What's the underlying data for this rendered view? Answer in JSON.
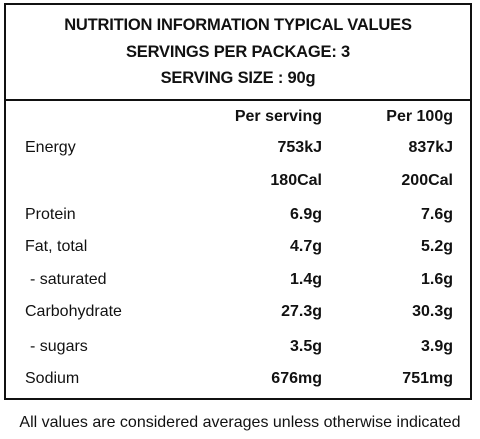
{
  "header": {
    "line1": "NUTRITION INFORMATION TYPICAL VALUES",
    "line2": "SERVINGS PER PACKAGE: 3",
    "line3": "SERVING SIZE : 90g"
  },
  "columns": {
    "per_serving": "Per serving",
    "per_100g": "Per 100g"
  },
  "rows": [
    {
      "label": "Energy",
      "per_serving": "753kJ",
      "per_100g": "837kJ"
    },
    {
      "label": "",
      "per_serving": "180Cal",
      "per_100g": "200Cal"
    },
    {
      "label": "Protein",
      "per_serving": "6.9g",
      "per_100g": "7.6g"
    },
    {
      "label": "Fat, total",
      "per_serving": "4.7g",
      "per_100g": "5.2g"
    },
    {
      "label": "- saturated",
      "per_serving": "1.4g",
      "per_100g": "1.6g"
    },
    {
      "label": "Carbohydrate",
      "per_serving": "27.3g",
      "per_100g": "30.3g"
    },
    {
      "label": "- sugars",
      "per_serving": "3.5g",
      "per_100g": "3.9g"
    },
    {
      "label": "Sodium",
      "per_serving": "676mg",
      "per_100g": "751mg"
    }
  ],
  "footer": "All values are considered averages unless otherwise indicated"
}
